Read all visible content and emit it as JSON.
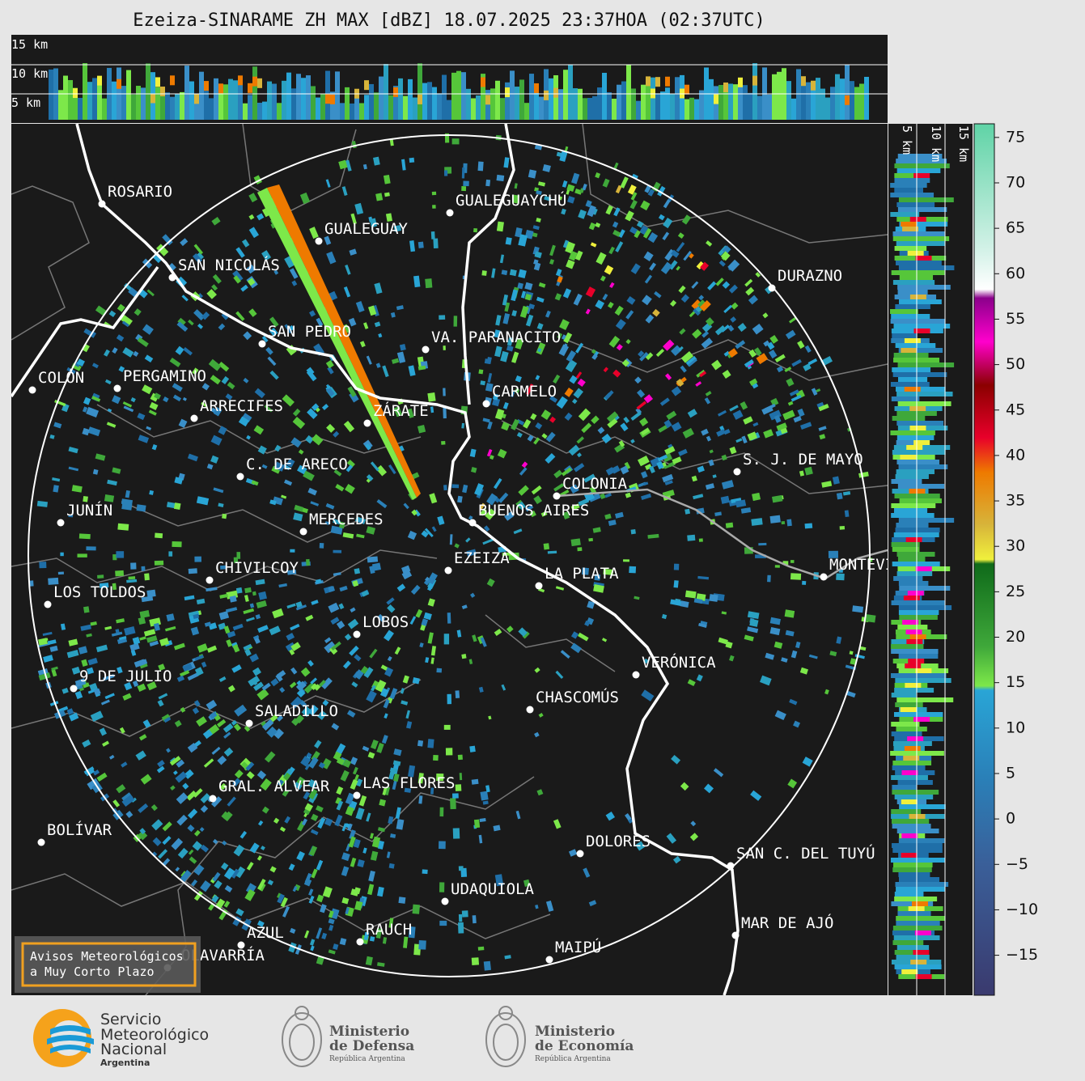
{
  "title": "Ezeiza-SINARAME ZH MAX [dBZ] 18.07.2025 23:37HOA (02:37UTC)",
  "top_panel": {
    "height_labels": [
      "15 km",
      "10 km",
      "5 km"
    ]
  },
  "side_panel": {
    "height_labels": [
      "5 km",
      "10 km",
      "15 km"
    ]
  },
  "cities": [
    "ROSARIO",
    "GUALEGUAYCHÚ",
    "GUALEGUAY",
    "SAN NICOLÁS",
    "DURAZNO",
    "SAN PEDRO",
    "VA. PARANACITO",
    "COLÓN",
    "PERGAMINO",
    "CARMELO",
    "ARRECIFES",
    "ZÁRATE",
    "S. J. DE MAYO",
    "C. DE ARECO",
    "COLONIA",
    "JUNÍN",
    "BUENOS AIRES",
    "MERCEDES",
    "EZEIZA",
    "MONTEVIDEO",
    "CHIVILCOY",
    "LA PLATA",
    "LOS TOLDOS",
    "LOBOS",
    "VERÓNICA",
    "9 DE JULIO",
    "CHASCOMÚS",
    "SALADILLO",
    "GRAL. ALVEAR",
    "LAS FLORES",
    "BOLÍVAR",
    "DOLORES",
    "SAN C. DEL TUYÚ",
    "UDAQUIOLA",
    "MAR DE AJÓ",
    "AZUL",
    "RAUCH",
    "OLAVARRÍA",
    "MAIPÚ"
  ],
  "colorbar": {
    "lim": [
      -19.4,
      76.5
    ],
    "ticks": [
      75,
      70,
      65,
      60,
      55,
      50,
      45,
      40,
      35,
      30,
      25,
      20,
      15,
      10,
      5,
      0,
      {
        "value": -5,
        "label": "−5"
      },
      {
        "value": -10,
        "label": "−10"
      },
      {
        "value": -15,
        "label": "−15"
      }
    ]
  },
  "notice": [
    "Avisos Meteorológicos",
    "a Muy Corto Plazo"
  ],
  "logos": {
    "smn": [
      "Servicio",
      "Meteorológico",
      "Nacional",
      "Argentina"
    ],
    "defensa": [
      "Ministerio",
      "de Defensa",
      "República Argentina"
    ],
    "economia": [
      "Ministerio",
      "de Economía",
      "República Argentina"
    ]
  }
}
